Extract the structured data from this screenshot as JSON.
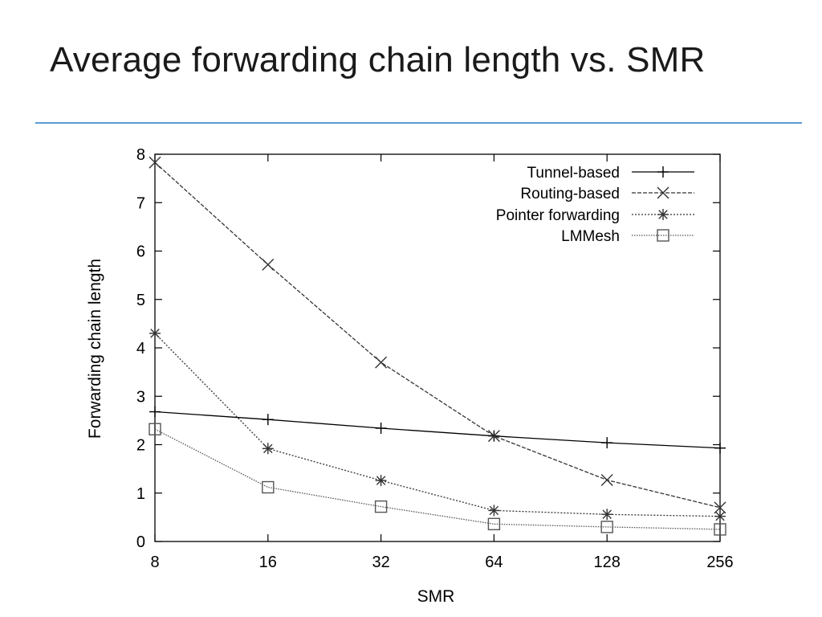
{
  "slide": {
    "title": "Average forwarding chain length vs. SMR",
    "accent_color": "#5b9bd5"
  },
  "chart_data": {
    "type": "line",
    "title": "",
    "xlabel": "SMR",
    "ylabel": "Forwarding chain length",
    "x": [
      8,
      16,
      32,
      64,
      128,
      256
    ],
    "x_tick_labels": [
      "8",
      "16",
      "32",
      "64",
      "128",
      "256"
    ],
    "x_scale": "log2",
    "y_ticks": [
      0,
      1,
      2,
      3,
      4,
      5,
      6,
      7,
      8
    ],
    "y_tick_labels": [
      "0",
      "1",
      "2",
      "3",
      "4",
      "5",
      "6",
      "7",
      "8"
    ],
    "ylim": [
      0,
      8
    ],
    "grid": false,
    "legend_position": "top-right",
    "series": [
      {
        "name": "Tunnel-based",
        "marker": "plus",
        "line_style": "solid",
        "color": "#000000",
        "values": [
          2.68,
          2.52,
          2.34,
          2.18,
          2.04,
          1.93
        ]
      },
      {
        "name": "Routing-based",
        "marker": "cross",
        "line_style": "dashed",
        "color": "#333333",
        "values": [
          7.83,
          5.72,
          3.7,
          2.18,
          1.27,
          0.7
        ]
      },
      {
        "name": "Pointer forwarding",
        "marker": "star",
        "line_style": "dotted",
        "color": "#333333",
        "values": [
          4.3,
          1.92,
          1.26,
          0.64,
          0.56,
          0.52
        ]
      },
      {
        "name": "LMMesh",
        "marker": "square",
        "line_style": "dotted-fine",
        "color": "#555555",
        "values": [
          2.32,
          1.12,
          0.72,
          0.36,
          0.3,
          0.25
        ]
      }
    ]
  }
}
